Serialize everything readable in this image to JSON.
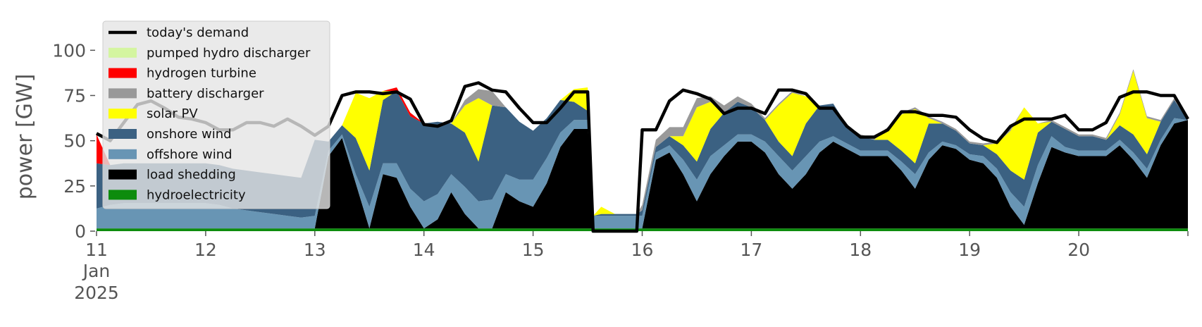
{
  "chart_data": {
    "type": "area",
    "stacked": true,
    "title": "",
    "xlabel": "",
    "ylabel": "power [GW]",
    "ylim": [
      0,
      120
    ],
    "yticks": [
      0,
      25,
      50,
      75,
      100
    ],
    "xlim": [
      11.0,
      21.0
    ],
    "x_tick_labels": [
      "11",
      "12",
      "13",
      "14",
      "15",
      "16",
      "17",
      "18",
      "19",
      "20"
    ],
    "x_tick_sublabels": [
      "Jan",
      "2025"
    ],
    "grid": false,
    "legend_position": "top-left",
    "background": "#ffffff",
    "legend_entries": [
      {
        "name": "today's demand",
        "color": "#000000",
        "kind": "line"
      },
      {
        "name": "pumped hydro discharger",
        "color": "#d4f5a0",
        "kind": "patch"
      },
      {
        "name": "hydrogen turbine",
        "color": "#ff0000",
        "kind": "patch"
      },
      {
        "name": "battery discharger",
        "color": "#999999",
        "kind": "patch"
      },
      {
        "name": "solar PV",
        "color": "#ffff00",
        "kind": "patch"
      },
      {
        "name": "onshore wind",
        "color": "#3b6182",
        "kind": "patch"
      },
      {
        "name": "offshore wind",
        "color": "#6895b4",
        "kind": "patch"
      },
      {
        "name": "load shedding",
        "color": "#000000",
        "kind": "patch"
      },
      {
        "name": "hydroelectricity",
        "color": "#0d8c0d",
        "kind": "patch"
      }
    ],
    "x": [
      11.0,
      11.125,
      11.25,
      11.375,
      11.5,
      11.625,
      11.75,
      11.875,
      12.0,
      12.125,
      12.25,
      12.375,
      12.5,
      12.625,
      12.75,
      12.875,
      13.0,
      13.125,
      13.25,
      13.375,
      13.5,
      13.625,
      13.75,
      13.875,
      14.0,
      14.125,
      14.25,
      14.375,
      14.5,
      14.625,
      14.75,
      14.875,
      15.0,
      15.125,
      15.25,
      15.375,
      15.5,
      15.55,
      15.625,
      15.75,
      15.875,
      15.95,
      16.0,
      16.125,
      16.25,
      16.375,
      16.5,
      16.625,
      16.75,
      16.875,
      17.0,
      17.125,
      17.25,
      17.375,
      17.5,
      17.625,
      17.75,
      17.875,
      18.0,
      18.125,
      18.25,
      18.375,
      18.5,
      18.625,
      18.75,
      18.875,
      19.0,
      19.125,
      19.25,
      19.375,
      19.5,
      19.625,
      19.75,
      19.875,
      20.0,
      20.125,
      20.25,
      20.375,
      20.5,
      20.625,
      20.75,
      20.875,
      21.0
    ],
    "series": [
      {
        "name": "hydroelectricity",
        "color": "#0d8c0d",
        "values": [
          1.5,
          1.5,
          1.5,
          1.5,
          1.5,
          1.5,
          1.5,
          1.5,
          1.5,
          1.5,
          1.5,
          1.5,
          1.5,
          1.5,
          1.5,
          1.5,
          1.5,
          1.5,
          1.5,
          1.5,
          1.5,
          1.5,
          1.5,
          1.5,
          1.5,
          1.5,
          1.5,
          1.5,
          1.5,
          1.5,
          1.5,
          1.5,
          1.5,
          1.5,
          1.5,
          1.5,
          1.5,
          1.5,
          1.5,
          1.5,
          1.5,
          1.5,
          1.5,
          1.5,
          1.5,
          1.5,
          1.5,
          1.5,
          1.5,
          1.5,
          1.5,
          1.5,
          1.5,
          1.5,
          1.5,
          1.5,
          1.5,
          1.5,
          1.5,
          1.5,
          1.5,
          1.5,
          1.5,
          1.5,
          1.5,
          1.5,
          1.5,
          1.5,
          1.5,
          1.5,
          1.5,
          1.5,
          1.5,
          1.5,
          1.5,
          1.5,
          1.5,
          1.5,
          1.5,
          1.5,
          1.5,
          1.5,
          1.5
        ]
      },
      {
        "name": "load shedding",
        "color": "#000000",
        "values": [
          0,
          0,
          0,
          0,
          0,
          0,
          0,
          0,
          0,
          0,
          0,
          0,
          0,
          0,
          0,
          0,
          0,
          40,
          50,
          25,
          0,
          30,
          28,
          12,
          0,
          5,
          20,
          8,
          0,
          0,
          20,
          15,
          12,
          25,
          45,
          55,
          55,
          0,
          0,
          0,
          0,
          0,
          0,
          38,
          42,
          30,
          15,
          30,
          40,
          48,
          48,
          42,
          30,
          22,
          30,
          42,
          48,
          44,
          40,
          40,
          40,
          32,
          22,
          38,
          46,
          44,
          38,
          36,
          28,
          12,
          2,
          25,
          45,
          42,
          40,
          40,
          40,
          46,
          38,
          28,
          46,
          58,
          60
        ]
      },
      {
        "name": "offshore wind",
        "color": "#6895b4",
        "values": [
          11,
          13,
          14,
          14,
          14,
          14,
          14,
          14,
          14,
          13,
          11,
          10,
          9,
          8,
          7,
          6,
          7,
          3,
          2,
          5,
          12,
          6,
          8,
          10,
          15,
          14,
          10,
          15,
          15,
          16,
          10,
          12,
          15,
          14,
          8,
          5,
          5,
          7,
          7,
          7,
          7,
          7,
          7,
          4,
          4,
          8,
          12,
          10,
          6,
          4,
          4,
          6,
          10,
          10,
          10,
          6,
          3,
          3,
          3,
          3,
          3,
          5,
          8,
          4,
          2,
          2,
          3,
          4,
          5,
          8,
          10,
          10,
          6,
          3,
          3,
          3,
          3,
          3,
          4,
          5,
          3,
          3,
          0
        ]
      },
      {
        "name": "onshore wind",
        "color": "#3b6182",
        "values": [
          25,
          22,
          22,
          22,
          22,
          22,
          22,
          22,
          22,
          22,
          22,
          22,
          22,
          22,
          22,
          22,
          42,
          5,
          5,
          20,
          20,
          35,
          40,
          40,
          43,
          40,
          28,
          30,
          22,
          52,
          37,
          32,
          27,
          22,
          18,
          10,
          5,
          0,
          1,
          1,
          1,
          1,
          3,
          3,
          5,
          8,
          10,
          15,
          18,
          18,
          15,
          12,
          8,
          8,
          18,
          20,
          18,
          10,
          8,
          6,
          6,
          6,
          6,
          16,
          10,
          8,
          6,
          6,
          8,
          12,
          15,
          18,
          8,
          10,
          8,
          8,
          6,
          8,
          10,
          8,
          10,
          10,
          0
        ]
      },
      {
        "name": "solar PV",
        "color": "#ffff00",
        "values": [
          0,
          0,
          0,
          0,
          0,
          0,
          0,
          0,
          0,
          0,
          0,
          0,
          0,
          0,
          0,
          0,
          0,
          0,
          0,
          25,
          40,
          5,
          0,
          0,
          0,
          0,
          0,
          15,
          35,
          0,
          0,
          0,
          0,
          0,
          0,
          7,
          13,
          0,
          4,
          0,
          0,
          0,
          0,
          0,
          0,
          5,
          30,
          15,
          0,
          0,
          0,
          0,
          20,
          35,
          15,
          0,
          0,
          0,
          0,
          0,
          6,
          20,
          30,
          3,
          0,
          0,
          0,
          0,
          6,
          22,
          40,
          5,
          0,
          0,
          0,
          0,
          0,
          6,
          35,
          20,
          0,
          0,
          0
        ]
      },
      {
        "name": "battery discharger",
        "color": "#999999",
        "values": [
          0,
          0,
          0,
          0,
          0,
          0,
          0,
          0,
          0,
          0,
          0,
          0,
          0,
          0,
          0,
          0,
          0,
          0,
          0,
          0,
          0,
          0,
          0,
          0,
          0,
          0,
          0,
          3,
          5,
          8,
          0,
          0,
          0,
          0,
          0,
          0,
          0,
          0,
          0,
          0,
          0,
          0,
          3,
          4,
          5,
          5,
          5,
          3,
          4,
          3,
          2,
          1,
          1,
          1,
          0,
          0,
          0,
          0,
          1,
          1,
          1,
          1,
          1,
          1,
          1,
          1,
          1,
          1,
          1,
          1,
          0,
          0,
          1,
          1,
          1,
          1,
          1,
          1,
          1,
          1,
          1,
          1,
          1
        ]
      },
      {
        "name": "hydrogen turbine",
        "color": "#ff0000",
        "values": [
          16,
          0,
          0,
          0,
          0,
          0,
          0,
          0,
          0,
          0,
          0,
          0,
          0,
          0,
          0,
          0,
          0,
          0,
          0,
          0,
          0,
          0,
          2,
          2,
          0,
          0,
          0,
          0,
          0,
          0,
          0,
          0,
          0,
          0,
          0,
          0,
          0,
          0,
          0,
          0,
          0,
          0,
          0,
          0,
          0,
          0,
          0,
          0,
          0,
          0,
          0,
          0,
          0,
          0,
          0,
          0,
          0,
          0,
          0,
          0,
          0,
          0,
          0,
          0,
          0,
          0,
          0,
          0,
          0,
          0,
          0,
          0,
          0,
          0,
          0,
          0,
          0,
          0,
          0,
          0,
          0,
          0,
          0
        ]
      },
      {
        "name": "pumped hydro discharger",
        "color": "#d4f5a0",
        "values": [
          0,
          0,
          0,
          0,
          0,
          0,
          0,
          0,
          0,
          0,
          0,
          0,
          0,
          0,
          0,
          0,
          0,
          0,
          0,
          0,
          0,
          0,
          0,
          0,
          0,
          0,
          0,
          0,
          0,
          0,
          0,
          0,
          0,
          0,
          0,
          0,
          0,
          0,
          0,
          0,
          0,
          0,
          0,
          0,
          0,
          0,
          0,
          0,
          0,
          0,
          0,
          0,
          0,
          0,
          0,
          0,
          0,
          0,
          0,
          0,
          0,
          0,
          0,
          0,
          0,
          0,
          0,
          0,
          0,
          0,
          0,
          0,
          0,
          0,
          0,
          0,
          0,
          0,
          0,
          0,
          0,
          0,
          0
        ]
      }
    ],
    "demand": {
      "name": "today's demand",
      "color": "#000000",
      "values": [
        54,
        50,
        60,
        70,
        72,
        68,
        63,
        62,
        60,
        56,
        56,
        60,
        60,
        58,
        62,
        58,
        53,
        58,
        75,
        77,
        77,
        76,
        77,
        73,
        59,
        58,
        61,
        80,
        82,
        78,
        77,
        68,
        60,
        60,
        68,
        77,
        77,
        0,
        0,
        0,
        0,
        0,
        56,
        56,
        72,
        78,
        76,
        73,
        65,
        68,
        68,
        65,
        78,
        78,
        76,
        68,
        68,
        58,
        52,
        52,
        56,
        66,
        66,
        64,
        64,
        63,
        56,
        51,
        49,
        58,
        62,
        62,
        62,
        64,
        56,
        56,
        60,
        74,
        77,
        77,
        75,
        75,
        62
      ]
    }
  }
}
